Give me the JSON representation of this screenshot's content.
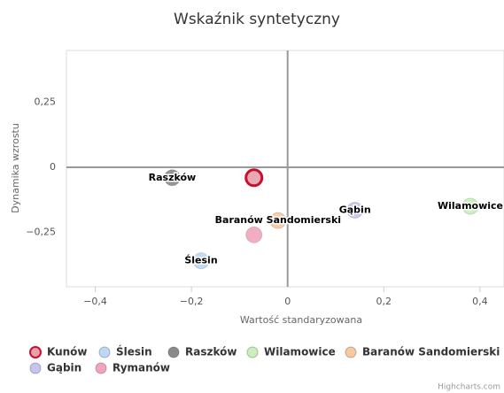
{
  "chart_data": {
    "type": "scatter",
    "title": "Wskaźnik syntetyczny",
    "x_label": "Wartość standaryzowana",
    "y_label": "Dynamika wzrostu",
    "credits": "Highcharts.com",
    "xlim": [
      -0.46,
      0.45
    ],
    "ylim": [
      -0.46,
      0.45
    ],
    "xticks": [
      {
        "value": -0.4,
        "label": "−0,4"
      },
      {
        "value": -0.2,
        "label": "−0,2"
      },
      0,
      {
        "value": 0.2,
        "label": "0,2"
      },
      {
        "value": 0.4,
        "label": "0,4"
      }
    ],
    "yticks": [
      {
        "value": -0.25,
        "label": "−0,25"
      },
      0,
      {
        "value": 0.25,
        "label": "0,25"
      }
    ],
    "grid": false,
    "legend": "bottom",
    "series": [
      {
        "name": "Kunów",
        "color": "#e8a0aa",
        "border": "#c8102e",
        "data_label": false,
        "x": [
          -0.07
        ],
        "values": [
          -0.04
        ]
      },
      {
        "name": "Ślesin",
        "color": "#bcd8f4",
        "data_label": true,
        "x": [
          -0.18
        ],
        "values": [
          -0.36
        ]
      },
      {
        "name": "Raszków",
        "color": "#8a8a8a",
        "data_label": true,
        "x": [
          -0.24
        ],
        "values": [
          -0.04
        ]
      },
      {
        "name": "Wilamowice",
        "color": "#c8f0b8",
        "data_label": true,
        "x": [
          0.38
        ],
        "values": [
          -0.15
        ]
      },
      {
        "name": "Baranów Sandomierski",
        "color": "#f8c8a0",
        "data_label": true,
        "x": [
          -0.02
        ],
        "values": [
          -0.205
        ]
      },
      {
        "name": "Gąbin",
        "color": "#c4c4ee",
        "data_label": true,
        "x": [
          0.14
        ],
        "values": [
          -0.165
        ]
      },
      {
        "name": "Rymanów",
        "color": "#f2a4bc",
        "data_label": false,
        "x": [
          -0.07
        ],
        "values": [
          -0.26
        ]
      }
    ]
  }
}
